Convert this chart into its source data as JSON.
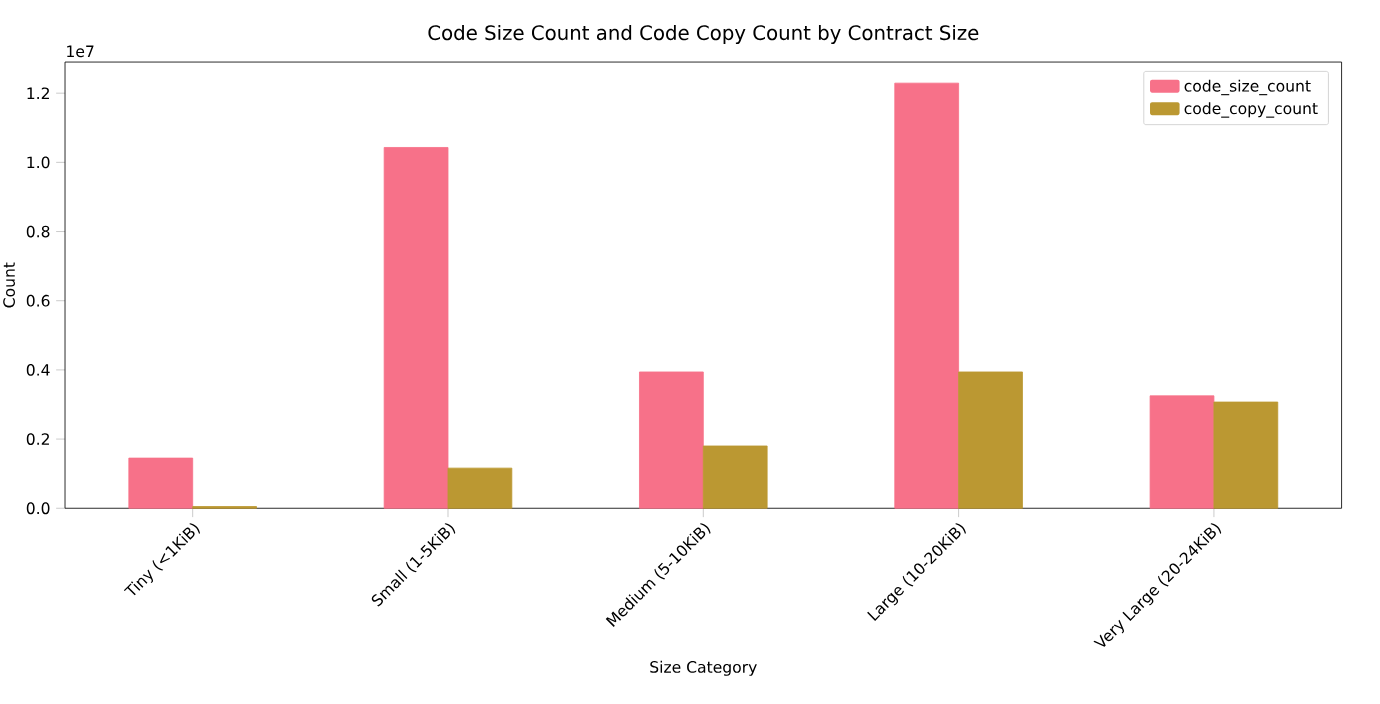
{
  "chart_data": {
    "type": "bar",
    "title": "Code Size Count and Code Copy Count by Contract Size",
    "categories": [
      "Tiny (<1KiB)",
      "Small (1-5KiB)",
      "Medium (5-10KiB)",
      "Large (10-20KiB)",
      "Very Large (20-24KiB)"
    ],
    "series": [
      {
        "name": "code_size_count",
        "color": "#f77189",
        "values": [
          0.145,
          1.043,
          0.394,
          1.229,
          0.325
        ]
      },
      {
        "name": "code_copy_count",
        "color": "#bb9832",
        "values": [
          0.005,
          0.116,
          0.18,
          0.394,
          0.307
        ]
      }
    ],
    "xlabel": "Size Category",
    "ylabel": "Count",
    "ylim": [
      0,
      1.29
    ],
    "yticks": [
      {
        "value": 0,
        "label": "0.0"
      },
      0.2,
      0.4,
      0.6,
      0.8,
      {
        "value": 1,
        "label": "1.0"
      },
      1.2
    ],
    "annotations": [
      "1e7"
    ],
    "legend": "top right",
    "grid": false
  }
}
